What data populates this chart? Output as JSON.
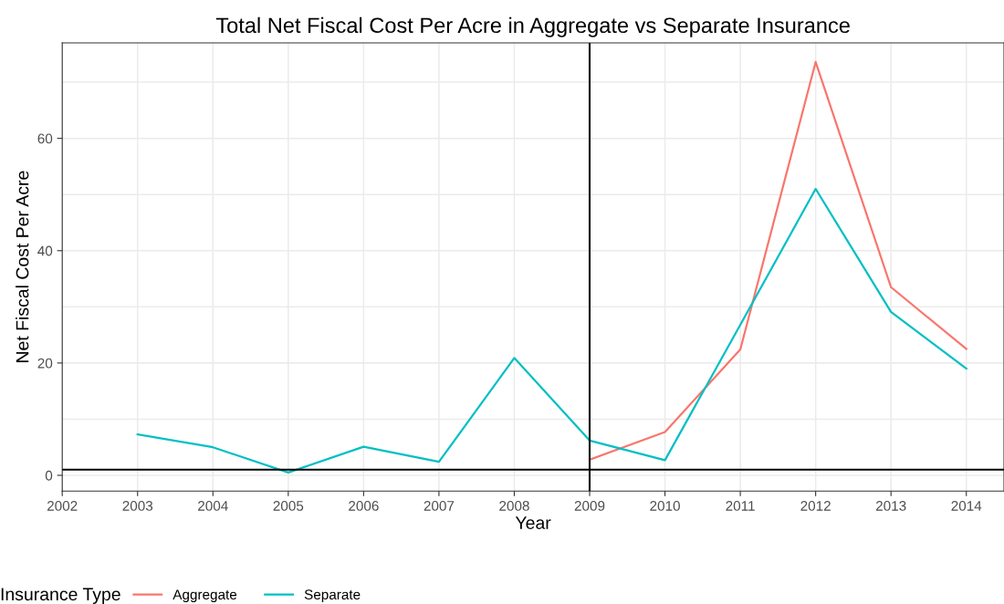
{
  "chart_data": {
    "type": "line",
    "title": "Total Net Fiscal Cost Per Acre in Aggregate vs Separate Insurance",
    "xlabel": "Year",
    "ylabel": "Net Fiscal Cost Per Acre",
    "legend_title": "Insurance Type",
    "x": [
      2003,
      2004,
      2005,
      2006,
      2007,
      2008,
      2009,
      2010,
      2011,
      2012,
      2013,
      2014
    ],
    "series": [
      {
        "name": "Aggregate",
        "color": "#f8766d",
        "values": [
          null,
          null,
          null,
          null,
          null,
          null,
          2.8,
          7.7,
          22.4,
          73.6,
          33.5,
          22.5
        ]
      },
      {
        "name": "Separate",
        "color": "#00bfc4",
        "values": [
          7.3,
          5.0,
          0.5,
          5.1,
          2.4,
          20.9,
          6.2,
          2.7,
          26.8,
          51.0,
          29.1,
          19.0
        ]
      }
    ],
    "xlim": [
      2002,
      2014.5
    ],
    "xticks": [
      2002,
      2003,
      2004,
      2005,
      2006,
      2007,
      2008,
      2009,
      2010,
      2011,
      2012,
      2013,
      2014
    ],
    "ylim": [
      -2.8,
      77
    ],
    "yticks": [
      0,
      {
        "value": 10,
        "label": null
      },
      20,
      {
        "value": 30,
        "label": null
      },
      40,
      {
        "value": 50,
        "label": null
      },
      60,
      {
        "value": 70,
        "label": null
      }
    ],
    "ref_lines": [
      {
        "axis": "x",
        "value": 2009,
        "color": "#000000"
      },
      {
        "axis": "y",
        "value": 1,
        "color": "#000000"
      }
    ],
    "grid": true,
    "legend": "bottom",
    "line_style": "solid",
    "marker": "none"
  }
}
